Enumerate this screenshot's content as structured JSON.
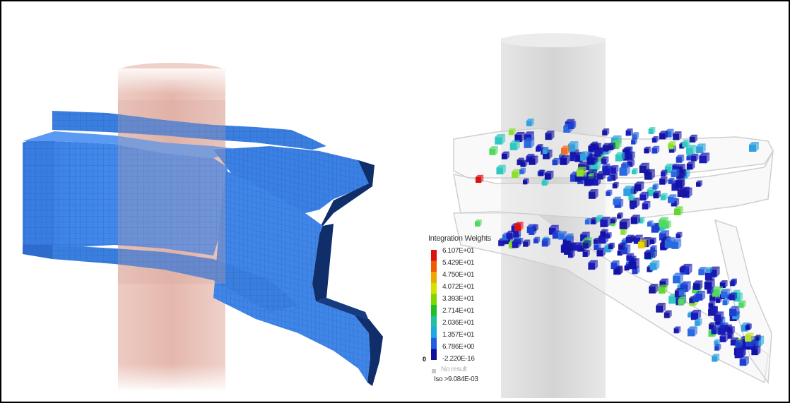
{
  "legend": {
    "title": "Integration Weights",
    "labels": [
      "6.107E+01",
      "5.429E+01",
      "4.750E+01",
      "4.072E+01",
      "3.393E+01",
      "2.714E+01",
      "2.036E+01",
      "1.357E+01",
      "6.786E+00",
      "-2.220E-16"
    ],
    "zero_marker": "0",
    "no_result": "No result",
    "iso": "Iso >9.084E-03"
  },
  "colors": {
    "shell_blue": "#3f86e8",
    "shell_dark": "#0d2f6b",
    "cylinder_pink": "#e4b3a8",
    "cylinder_grey": "#d9d9d9",
    "colormap": [
      "#e01010",
      "#f05a00",
      "#f0a800",
      "#d8e000",
      "#7ed800",
      "#20c020",
      "#20c0a0",
      "#20a8e0",
      "#2060e0",
      "#1010a0"
    ]
  }
}
